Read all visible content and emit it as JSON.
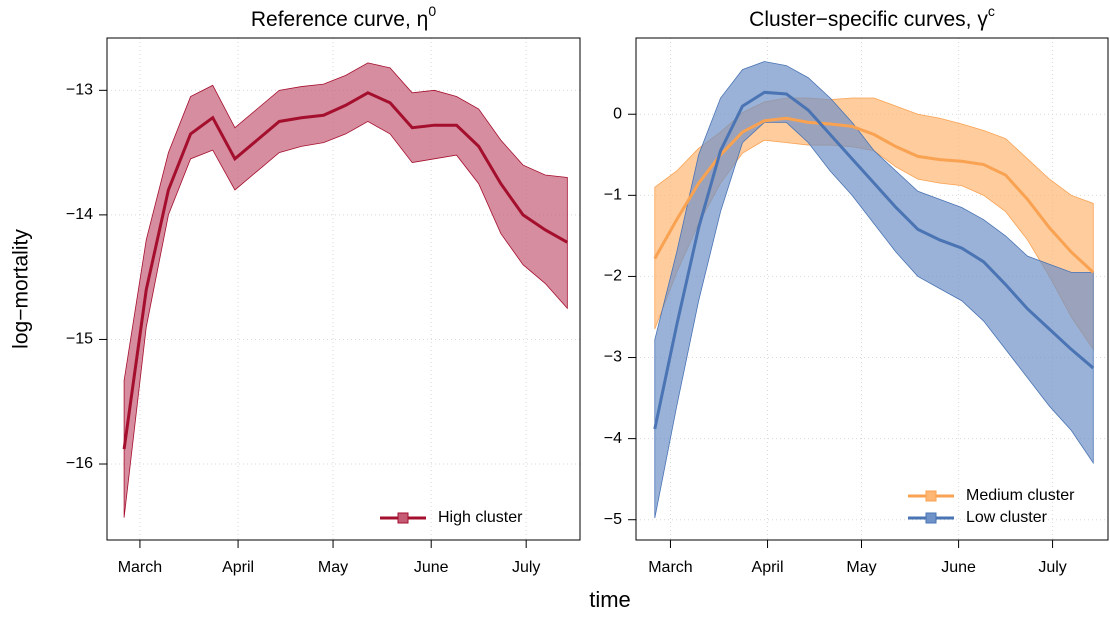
{
  "chart_data": [
    {
      "type": "line",
      "title": "Reference curve, η",
      "title_superscript": "0",
      "ylabel": "log−mortality",
      "xlabel": "time",
      "x": [
        56,
        63,
        70,
        77,
        84,
        91,
        98,
        105,
        112,
        119,
        126,
        133,
        140,
        147,
        154,
        161,
        168,
        175,
        182,
        189,
        196
      ],
      "series": [
        {
          "name": "High cluster",
          "color": "#a50f2e",
          "band_color": "#c45c76",
          "values": [
            -15.88,
            -14.6,
            -13.8,
            -13.35,
            -13.22,
            -13.55,
            -13.4,
            -13.25,
            -13.22,
            -13.2,
            -13.12,
            -13.02,
            -13.1,
            -13.3,
            -13.28,
            -13.28,
            -13.45,
            -13.75,
            -14.0,
            -14.12,
            -14.22
          ],
          "lower": [
            -16.43,
            -14.9,
            -14.0,
            -13.55,
            -13.48,
            -13.8,
            -13.65,
            -13.5,
            -13.45,
            -13.42,
            -13.35,
            -13.25,
            -13.35,
            -13.58,
            -13.55,
            -13.52,
            -13.75,
            -14.15,
            -14.4,
            -14.55,
            -14.75
          ],
          "upper": [
            -15.33,
            -14.2,
            -13.5,
            -13.05,
            -12.96,
            -13.3,
            -13.15,
            -13.0,
            -12.97,
            -12.95,
            -12.88,
            -12.78,
            -12.82,
            -13.02,
            -13.0,
            -13.05,
            -13.15,
            -13.4,
            -13.6,
            -13.68,
            -13.7
          ]
        }
      ],
      "xlim": [
        50.6,
        200
      ],
      "xticks": [
        {
          "value": 61,
          "label": "March"
        },
        {
          "value": 92,
          "label": "April"
        },
        {
          "value": 122,
          "label": "May"
        },
        {
          "value": 153,
          "label": "June"
        },
        {
          "value": 183,
          "label": "July"
        }
      ],
      "ylim": [
        -16.61,
        -12.58
      ],
      "yticks": [
        {
          "value": -16,
          "label": "−16"
        },
        {
          "value": -15,
          "label": "−15"
        },
        {
          "value": -14,
          "label": "−14"
        },
        {
          "value": -13,
          "label": "−13"
        }
      ],
      "grid": true,
      "legend": "bottomright"
    },
    {
      "type": "line",
      "title": "Cluster−specific curves, γ",
      "title_superscript": "c",
      "x": [
        56,
        63,
        70,
        77,
        84,
        91,
        98,
        105,
        112,
        119,
        126,
        133,
        140,
        147,
        154,
        161,
        168,
        175,
        182,
        189,
        196
      ],
      "series": [
        {
          "name": "Medium cluster",
          "color": "#f9a252",
          "band_color": "#fdb673",
          "values": [
            -1.78,
            -1.3,
            -0.85,
            -0.5,
            -0.22,
            -0.08,
            -0.05,
            -0.1,
            -0.12,
            -0.15,
            -0.25,
            -0.4,
            -0.52,
            -0.56,
            -0.58,
            -0.62,
            -0.75,
            -1.05,
            -1.4,
            -1.7,
            -1.95
          ],
          "lower": [
            -2.65,
            -1.95,
            -1.35,
            -0.85,
            -0.48,
            -0.32,
            -0.35,
            -0.38,
            -0.38,
            -0.4,
            -0.45,
            -0.65,
            -0.8,
            -0.85,
            -0.88,
            -1.0,
            -1.2,
            -1.55,
            -2.0,
            -2.5,
            -2.9
          ],
          "upper": [
            -0.9,
            -0.7,
            -0.42,
            -0.22,
            0.02,
            0.15,
            0.2,
            0.2,
            0.18,
            0.2,
            0.2,
            0.1,
            0.0,
            -0.05,
            -0.12,
            -0.2,
            -0.3,
            -0.55,
            -0.8,
            -1.0,
            -1.1
          ]
        },
        {
          "name": "Low cluster",
          "color": "#4a74b4",
          "band_color": "#6f92c8",
          "values": [
            -3.88,
            -2.6,
            -1.4,
            -0.45,
            0.1,
            0.27,
            0.25,
            0.05,
            -0.25,
            -0.55,
            -0.85,
            -1.15,
            -1.42,
            -1.55,
            -1.65,
            -1.82,
            -2.1,
            -2.4,
            -2.65,
            -2.9,
            -3.13
          ],
          "lower": [
            -4.98,
            -3.6,
            -2.3,
            -1.2,
            -0.35,
            -0.1,
            -0.1,
            -0.35,
            -0.7,
            -1.0,
            -1.35,
            -1.7,
            -2.0,
            -2.15,
            -2.3,
            -2.55,
            -2.9,
            -3.25,
            -3.6,
            -3.9,
            -4.3
          ],
          "upper": [
            -2.78,
            -1.7,
            -0.5,
            0.2,
            0.55,
            0.65,
            0.6,
            0.45,
            0.2,
            -0.1,
            -0.45,
            -0.7,
            -0.95,
            -1.05,
            -1.15,
            -1.3,
            -1.5,
            -1.75,
            -1.85,
            -1.95,
            -1.95
          ]
        }
      ],
      "xlim": [
        50,
        200.7
      ],
      "xticks": [
        {
          "value": 61,
          "label": "March"
        },
        {
          "value": 92,
          "label": "April"
        },
        {
          "value": 122,
          "label": "May"
        },
        {
          "value": 153,
          "label": "June"
        },
        {
          "value": 183,
          "label": "July"
        }
      ],
      "ylim": [
        -5.25,
        0.94
      ],
      "yticks": [
        {
          "value": -5,
          "label": "−5"
        },
        {
          "value": -4,
          "label": "−4"
        },
        {
          "value": -3,
          "label": "−3"
        },
        {
          "value": -2,
          "label": "−2"
        },
        {
          "value": -1,
          "label": "−1"
        },
        0
      ],
      "grid": true,
      "legend": "bottomright"
    }
  ]
}
